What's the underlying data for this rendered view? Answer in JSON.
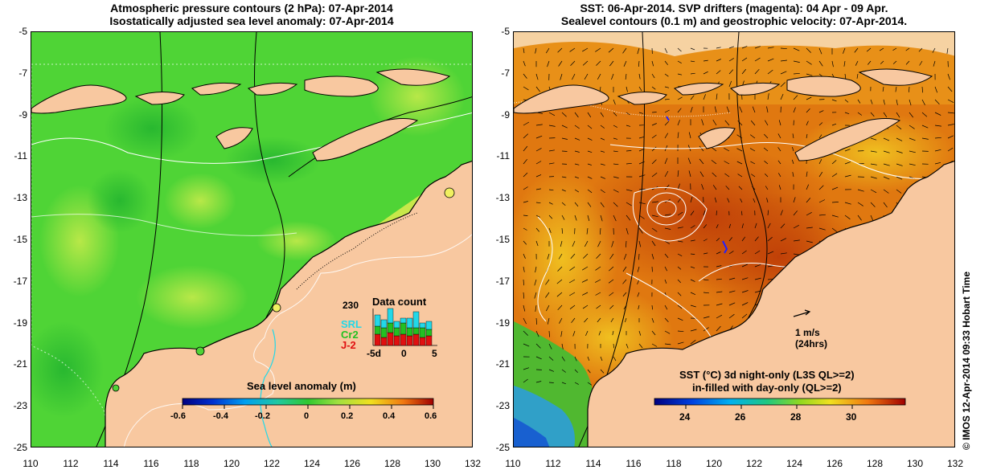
{
  "left": {
    "title_line1": "Atmospheric pressure contours (2 hPa): 07-Apr-2014",
    "title_line2": "Isostatically adjusted sea level anomaly: 07-Apr-2014",
    "colorbar_label": "Sea level anomaly (m)",
    "colorbar_ticks": [
      "-0.6",
      "-0.4",
      "-0.2",
      "0",
      "0.2",
      "0.4",
      "0.6"
    ],
    "colorbar_range": [
      -0.6,
      0.6
    ],
    "inset": {
      "title": "Data count",
      "max_label": "230",
      "x_ticks": [
        "-5d",
        "0",
        "5"
      ],
      "legend": [
        {
          "label": "SRL",
          "color": "#22d8e8"
        },
        {
          "label": "Cr2",
          "color": "#22c022"
        },
        {
          "label": "J-2",
          "color": "#e01010"
        }
      ]
    }
  },
  "right": {
    "title_line1": "SST: 06-Apr-2014. SVP drifters (magenta): 04 Apr - 09 Apr.",
    "title_line2": "Sealevel contours (0.1 m) and geostrophic velocity: 07-Apr-2014.",
    "colorbar_label_line1": "SST (°C)  3d night-only (L3S QL>=2)",
    "colorbar_label_line2": "in-filled with day-only (QL>=2)",
    "colorbar_ticks": [
      "24",
      "26",
      "28",
      "30"
    ],
    "colorbar_range": [
      22.5,
      31.5
    ],
    "velocity_scale_label": "1 m/s",
    "velocity_scale_sublabel": "(24hrs)"
  },
  "axes": {
    "lon_ticks": [
      "110",
      "112",
      "114",
      "116",
      "118",
      "120",
      "122",
      "124",
      "126",
      "128",
      "130",
      "132"
    ],
    "lat_ticks": [
      "-5",
      "-7",
      "-9",
      "-11",
      "-13",
      "-15",
      "-17",
      "-19",
      "-21",
      "-23",
      "-25"
    ],
    "lon_range": [
      110,
      132
    ],
    "lat_range": [
      -25,
      -5
    ]
  },
  "credit": "© IMOS 12-Apr-2014 09:33 Hobart Time",
  "colors": {
    "land": "#f8c8a0",
    "ocean_green": "#4fd436",
    "ocean_light": "#a0e040",
    "sst_orange": "#e07810",
    "sst_dark": "#c85008"
  }
}
